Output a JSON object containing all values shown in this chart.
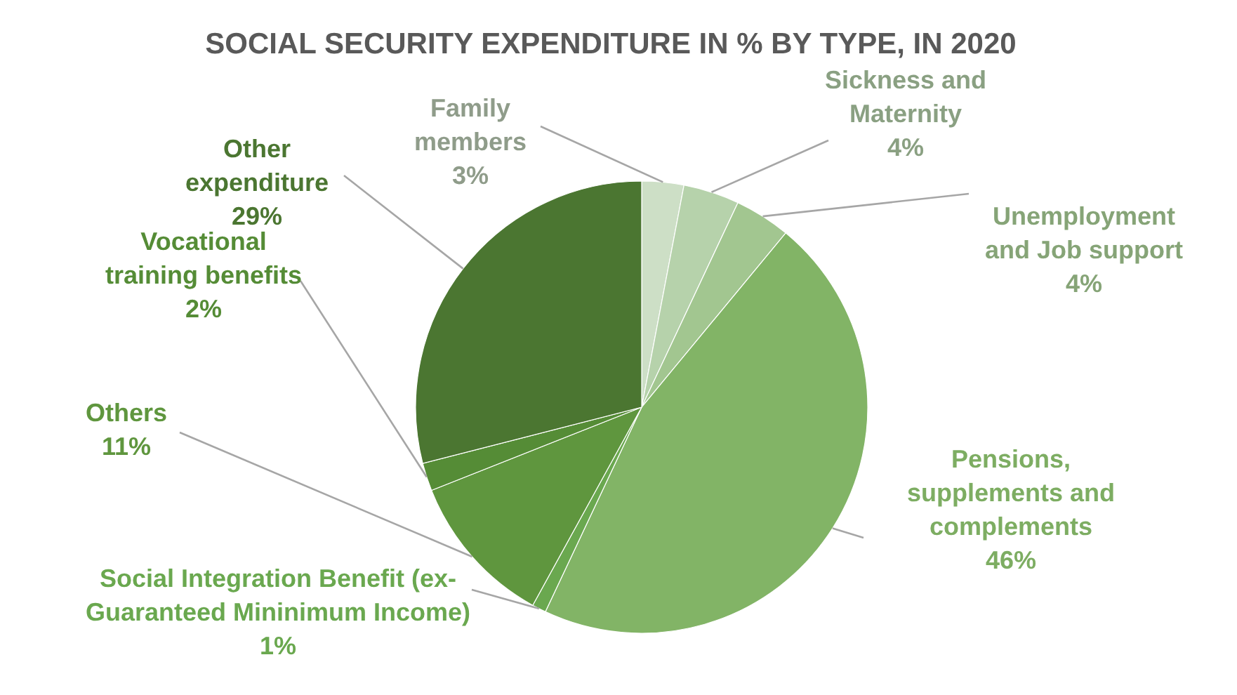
{
  "chart_data": {
    "type": "pie",
    "title": "SOCIAL SECURITY EXPENDITURE IN % BY TYPE, IN 2020",
    "categories": [
      "Family members",
      "Sickness and Maternity",
      "Unemployment and Job support",
      "Pensions, supplements and complements",
      "Social Integration Benefit (ex-Guaranteed Mininimum Income)",
      "Others",
      "Vocational training benefits",
      "Other expenditure"
    ],
    "values": [
      3,
      4,
      4,
      46,
      1,
      11,
      2,
      29
    ],
    "colors": [
      "#cddfc6",
      "#b6d2ab",
      "#a2c690",
      "#82b466",
      "#6aa84f",
      "#5f963e",
      "#558c36",
      "#4b7631"
    ],
    "value_labels": [
      "3%",
      "4%",
      "4%",
      "46%",
      "1%",
      "11%",
      "2%",
      "29%"
    ]
  }
}
